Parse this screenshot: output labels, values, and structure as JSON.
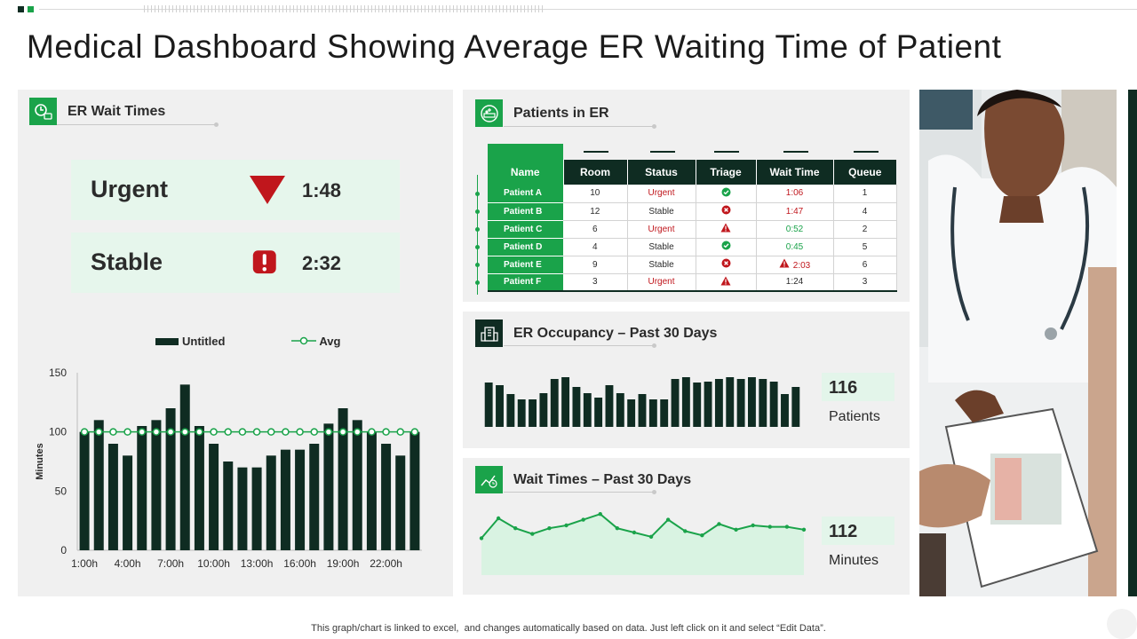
{
  "title": "Medical Dashboard Showing Average ER Waiting Time of Patient",
  "er_wait": {
    "heading": "ER Wait Times",
    "icon": "clock-stopwatch-icon",
    "cards": [
      {
        "label": "Urgent",
        "value": "1:48",
        "icon": "down-triangle-icon",
        "color": "#c0161c"
      },
      {
        "label": "Stable",
        "value": "2:32",
        "icon": "exclamation-icon",
        "color": "#c0161c"
      }
    ],
    "legend": {
      "bars": "Untitled",
      "line": "Avg"
    }
  },
  "patients": {
    "heading": "Patients in ER",
    "icon": "hospital-bed-icon",
    "columns": [
      "Name",
      "Room",
      "Status",
      "Triage",
      "Wait Time",
      "Queue"
    ],
    "rows": [
      {
        "name": "Patient A",
        "room": "10",
        "status": "Urgent",
        "triage": "check-icon",
        "wait": "1:06",
        "wait_icon": "",
        "wait_color": "red",
        "queue": "1"
      },
      {
        "name": "Patient B",
        "room": "12",
        "status": "Stable",
        "triage": "x-icon",
        "wait": "1:47",
        "wait_icon": "",
        "wait_color": "red",
        "queue": "4"
      },
      {
        "name": "Patient C",
        "room": "6",
        "status": "Urgent",
        "triage": "warning-icon",
        "wait": "0:52",
        "wait_icon": "",
        "wait_color": "green",
        "queue": "2"
      },
      {
        "name": "Patient D",
        "room": "4",
        "status": "Stable",
        "triage": "check-icon",
        "wait": "0:45",
        "wait_icon": "",
        "wait_color": "green",
        "queue": "5"
      },
      {
        "name": "Patient E",
        "room": "9",
        "status": "Stable",
        "triage": "x-icon",
        "wait": "2:03",
        "wait_icon": "warning-icon",
        "wait_color": "red",
        "queue": "6"
      },
      {
        "name": "Patient F",
        "room": "3",
        "status": "Urgent",
        "triage": "warning-icon",
        "wait": "1:24",
        "wait_icon": "",
        "wait_color": "default",
        "queue": "3"
      }
    ]
  },
  "occupancy": {
    "heading": "ER Occupancy – Past 30 Days",
    "icon": "building-icon",
    "kpi_value": "116",
    "kpi_label": "Patients"
  },
  "wait30": {
    "heading": "Wait Times – Past 30 Days",
    "icon": "clock-chart-icon",
    "kpi_value": "112",
    "kpi_label": "Minutes"
  },
  "chart_data": [
    {
      "type": "bar",
      "title": "",
      "xlabel": "",
      "ylabel": "Minutes",
      "ylim": [
        0,
        150
      ],
      "yticks": [
        "0",
        "50",
        "100",
        "150"
      ],
      "xticks": [
        "1:00h",
        "4:00h",
        "7:00h",
        "10:00h",
        "13:00h",
        "16:00h",
        "19:00h",
        "22:00h"
      ],
      "legend": "top-center",
      "series": [
        {
          "name": "Untitled",
          "type": "bar",
          "values": [
            100,
            110,
            90,
            80,
            105,
            110,
            120,
            140,
            105,
            90,
            75,
            70,
            70,
            80,
            85,
            85,
            90,
            107,
            120,
            110,
            100,
            90,
            80,
            100
          ]
        },
        {
          "name": "Avg",
          "type": "line",
          "values": [
            100,
            100,
            100,
            100,
            100,
            100,
            100,
            100,
            100,
            100,
            100,
            100,
            100,
            100,
            100,
            100,
            100,
            100,
            100,
            100,
            100,
            100,
            100,
            100
          ]
        }
      ]
    },
    {
      "type": "bar",
      "title": "",
      "values": [
        50,
        47,
        37,
        31,
        31,
        38,
        54,
        56,
        45,
        38,
        33,
        47,
        38,
        31,
        37,
        31,
        31,
        54,
        56,
        50,
        51,
        54,
        56,
        54,
        56,
        54,
        51,
        37,
        45
      ]
    },
    {
      "type": "area",
      "title": "",
      "values": [
        26,
        40,
        33,
        29,
        33,
        35,
        39,
        43,
        33,
        30,
        27,
        39,
        31,
        28,
        36,
        32,
        35,
        34,
        34,
        32
      ]
    }
  ]
}
